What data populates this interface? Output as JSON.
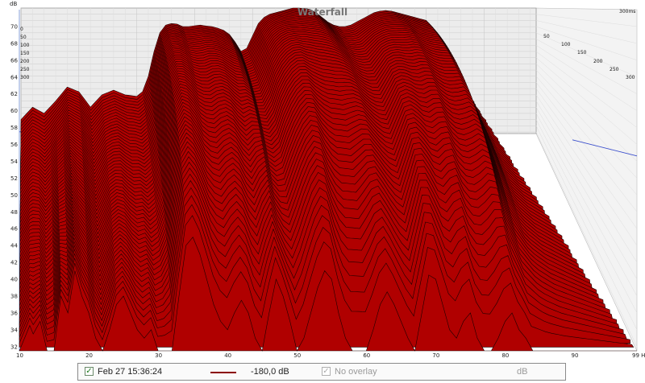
{
  "chart_data": {
    "type": "area",
    "title": "Waterfall",
    "time_label": "300ms",
    "y_unit": "dB",
    "x_unit": "Hz",
    "y_ticks": [
      32,
      34,
      36,
      38,
      40,
      42,
      44,
      46,
      48,
      50,
      52,
      54,
      56,
      58,
      60,
      62,
      64,
      66,
      68,
      70
    ],
    "x_ticks": [
      "10",
      "20",
      "30",
      "40",
      "50",
      "60",
      "70",
      "80",
      "90",
      "99 Hz"
    ],
    "x_range": [
      10,
      99
    ],
    "y_range": [
      31.5,
      72
    ],
    "depth_labels_left": [
      "0",
      "50",
      "100",
      "150",
      "200",
      "250",
      "300"
    ],
    "depth_labels_right": [
      "50",
      "100",
      "150",
      "200",
      "250",
      "300"
    ],
    "slices": 60,
    "front_slice": {
      "x": [
        10,
        11.5,
        12,
        13,
        14,
        15,
        16,
        17,
        18,
        19,
        20,
        21,
        22,
        23,
        24,
        25,
        26,
        27,
        28,
        29,
        30,
        31,
        32,
        33,
        34,
        35,
        36,
        37,
        38,
        39,
        40,
        41,
        42,
        43,
        44,
        45,
        46,
        47,
        48,
        49,
        50,
        51,
        52,
        53,
        54,
        55,
        56,
        57,
        58,
        59,
        60,
        61,
        62,
        63,
        64,
        65,
        66,
        67,
        68,
        69,
        70,
        71,
        72,
        73,
        74,
        75,
        76,
        77,
        78,
        79,
        80,
        81,
        82,
        83,
        84,
        85,
        86,
        87,
        88,
        89,
        90,
        91,
        92,
        93,
        94,
        95,
        96,
        97,
        98,
        99
      ],
      "y": [
        31.5,
        34.5,
        33.5,
        35,
        31.5,
        31.5,
        38,
        36,
        41,
        38,
        36,
        33,
        31.5,
        34,
        37,
        38,
        36,
        34,
        33,
        34,
        31.5,
        31.5,
        31.5,
        38,
        44,
        45,
        43,
        40,
        37,
        35,
        34,
        36,
        37.5,
        36,
        33,
        31.5,
        36,
        40,
        38,
        35,
        31.5,
        33,
        36,
        39,
        41,
        40,
        36,
        33,
        31.5,
        31.5,
        31.5,
        34,
        37,
        38.5,
        37,
        35,
        33,
        31.5,
        36,
        40.5,
        40,
        37,
        34,
        33,
        35,
        36,
        33,
        31.5,
        31.5,
        33,
        35,
        36,
        34,
        33,
        31.5,
        31.5,
        31.5,
        31.5,
        31.5,
        31.5,
        31.5,
        31.5,
        31.5,
        31.5,
        31.5,
        31.5,
        31.5,
        31.5,
        31.5,
        31.5
      ]
    },
    "back_slice": {
      "x": [
        10,
        12,
        14,
        16,
        18,
        20,
        22,
        24,
        26,
        28,
        30,
        31,
        32,
        33,
        34,
        35,
        36,
        37,
        38,
        39,
        40,
        41,
        42,
        43,
        44,
        45,
        46,
        47,
        48,
        49,
        50,
        51,
        52,
        53,
        54,
        55,
        56,
        57,
        58,
        59,
        60,
        61,
        62,
        63,
        64,
        65,
        66,
        67,
        68,
        69,
        70,
        71,
        72,
        73,
        74,
        75,
        76,
        77,
        78,
        79,
        80,
        81,
        82,
        83,
        84,
        85,
        86,
        87,
        88,
        89,
        90,
        91,
        92,
        93,
        94,
        95,
        96,
        97,
        98,
        99
      ],
      "y": [
        36,
        40,
        38,
        42,
        46.5,
        45,
        40,
        44,
        45.5,
        44,
        43.5,
        45,
        50,
        58,
        64,
        66.5,
        67,
        66.8,
        66,
        66,
        66.3,
        66.5,
        66.2,
        66,
        65.5,
        64.8,
        63.5,
        61,
        58,
        59,
        63,
        67,
        69,
        70,
        70.5,
        71,
        71.5,
        72,
        72,
        71.8,
        71.5,
        70.5,
        69,
        67.5,
        66.5,
        66,
        66,
        66.5,
        67.5,
        68.5,
        69.5,
        70.5,
        71,
        71.2,
        71,
        70.5,
        70,
        69.5,
        69,
        68.5,
        68,
        66,
        62,
        58,
        55,
        52,
        49,
        47,
        45.5,
        44,
        43,
        42,
        41,
        40,
        39,
        38,
        37,
        36,
        35,
        34
      ]
    },
    "overlay_line": {
      "y_db": 57.5,
      "x_to": 30
    },
    "colors": {
      "fill": "#b00000",
      "stroke": "#1a0000",
      "background": "#ececec",
      "grid": "#cccccc"
    }
  },
  "legend": {
    "timestamp": "Feb 27 15:36:24",
    "level": "-180,0 dB",
    "overlay_label": "No overlay",
    "unit": "dB",
    "checked_mark": "✓"
  }
}
